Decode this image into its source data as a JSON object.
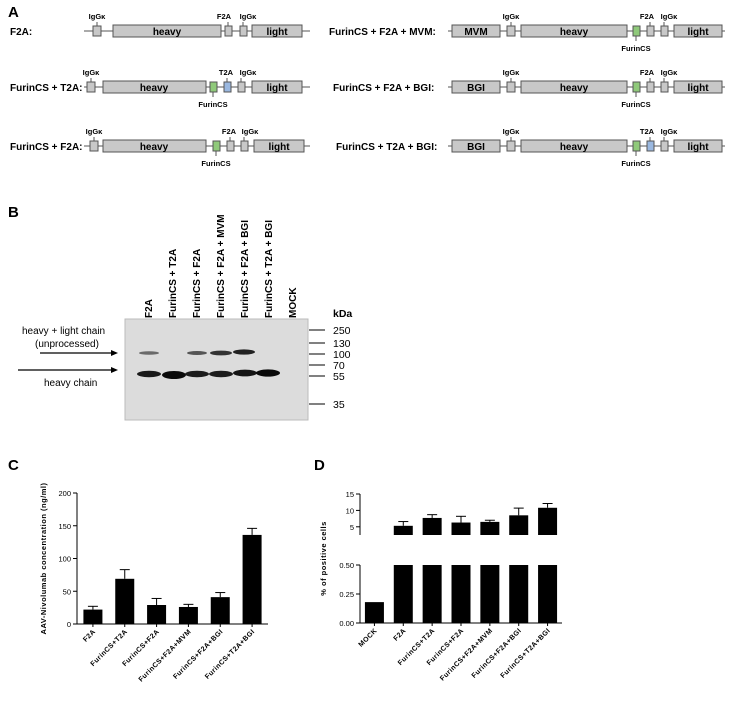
{
  "panels": {
    "a": "A",
    "b": "B",
    "c": "C",
    "d": "D"
  },
  "constructs": [
    {
      "name": "F2A:",
      "segments": [
        "heavy",
        "light"
      ],
      "markers_above": [
        "IgGκ",
        "F2A",
        "IgGκ"
      ],
      "markers_below": []
    },
    {
      "name": "FurinCS + T2A:",
      "segments": [
        "heavy",
        "light"
      ],
      "markers_above": [
        "IgGκ",
        "T2A",
        "IgGκ"
      ],
      "markers_below": [
        "FurinCS"
      ]
    },
    {
      "name": "FurinCS + F2A:",
      "segments": [
        "heavy",
        "light"
      ],
      "markers_above": [
        "IgGκ",
        "F2A",
        "IgGκ"
      ],
      "markers_below": [
        "FurinCS"
      ]
    },
    {
      "name": "FurinCS + F2A + MVM:",
      "segments": [
        "MVM",
        "heavy",
        "light"
      ],
      "markers_above": [
        "IgGκ",
        "F2A",
        "IgGκ"
      ],
      "markers_below": [
        "FurinCS"
      ]
    },
    {
      "name": "FurinCS + F2A + BGI:",
      "segments": [
        "BGI",
        "heavy",
        "light"
      ],
      "markers_above": [
        "IgGκ",
        "F2A",
        "IgGκ"
      ],
      "markers_below": [
        "FurinCS"
      ]
    },
    {
      "name": "FurinCS + T2A + BGI:",
      "segments": [
        "BGI",
        "heavy",
        "light"
      ],
      "markers_above": [
        "IgGκ",
        "T2A",
        "IgGκ"
      ],
      "markers_below": [
        "FurinCS"
      ]
    }
  ],
  "blot": {
    "lanes": [
      "F2A",
      "FurinCS + T2A",
      "FurinCS + F2A",
      "FurinCS + F2A + MVM",
      "FurinCS + F2A + BGI",
      "FurinCS + T2A + BGI",
      "MOCK"
    ],
    "unit": "kDa",
    "markers": [
      "250",
      "130",
      "100",
      "70",
      "55",
      "35"
    ],
    "label_upper_1": "heavy + light chain",
    "label_upper_2": "(unprocessed)",
    "label_lower": "heavy chain"
  },
  "chart_data": [
    {
      "type": "bar",
      "panel": "C",
      "categories": [
        "F2A",
        "FurinCS+T2A",
        "FurinCS+F2A",
        "FurinCS+F2A+MVM",
        "FurinCS+F2A+BGI",
        "FurinCS+T2A+BGI"
      ],
      "values": [
        22,
        69,
        29,
        26,
        41,
        136
      ],
      "errors": [
        5,
        14,
        10,
        4,
        7,
        10
      ],
      "ylabel": "AAV-Nivolumab concentration (ng/ml)",
      "yticks": [
        "0",
        "50",
        "100",
        "150",
        "200"
      ],
      "ylim": [
        0,
        200
      ],
      "grid": false
    },
    {
      "type": "bar",
      "panel": "D",
      "axis_break": true,
      "categories": [
        "MOCK",
        "F2A",
        "FurinCS+T2A",
        "FurinCS+F2A",
        "FurinCS+F2A+MVM",
        "FurinCS+F2A+BGI",
        "FurinCS+T2A+BGI"
      ],
      "values": [
        0.18,
        5.3,
        7.7,
        6.3,
        6.5,
        8.5,
        10.8
      ],
      "errors": [
        0,
        1.3,
        1.0,
        1.9,
        0.5,
        2.2,
        1.3
      ],
      "ylabel": "% of positive cells",
      "yticks_lower": [
        "0.00",
        "0.25",
        "0.50"
      ],
      "yticks_upper": [
        "5",
        "10",
        "15"
      ],
      "ylim_lower": [
        0,
        0.5
      ],
      "ylim_upper": [
        2.5,
        15
      ],
      "grid": false
    }
  ],
  "colors": {
    "segment_fill": "#c8c8c8",
    "segment_stroke": "#555555",
    "furin_green": "#8fc97a",
    "t2a_blue": "#9ab8e0",
    "bar": "#000000",
    "blot_bg": "#dcdcdc"
  }
}
